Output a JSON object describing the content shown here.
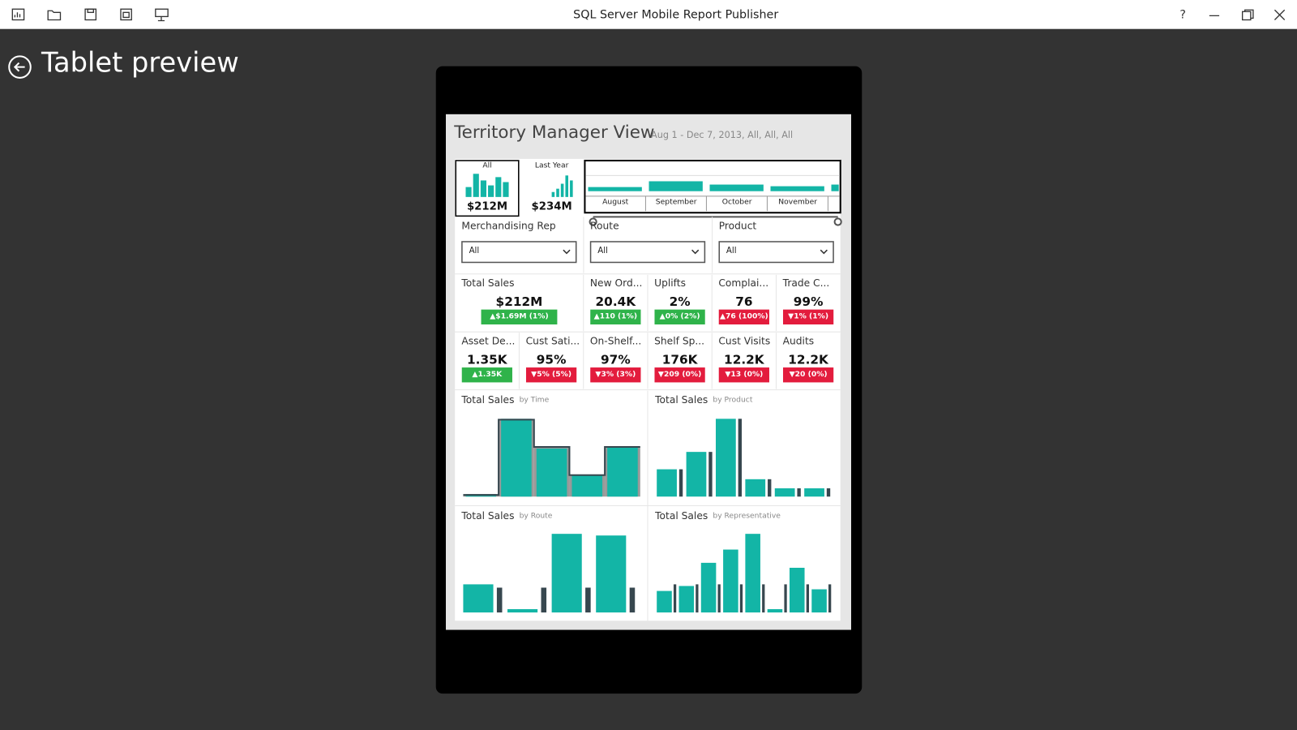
{
  "window": {
    "title": "SQL Server Mobile Report Publisher",
    "help": "?"
  },
  "page": {
    "title": "Tablet preview"
  },
  "report": {
    "title": "Territory Manager View",
    "subtitle": "Aug 1 - Dec 7, 2013, All, All, All"
  },
  "selectors": [
    {
      "label": "All",
      "value": "$212M",
      "bars": [
        12,
        28,
        20,
        14,
        24,
        18
      ]
    },
    {
      "label": "Last Year",
      "value": "$234M",
      "bars": [
        6,
        10,
        16,
        26,
        20
      ]
    }
  ],
  "time_navigator": {
    "months": [
      "August",
      "September",
      "October",
      "November"
    ],
    "bars": [
      5,
      12,
      8,
      6,
      8
    ]
  },
  "filters": [
    {
      "label": "Merchandising Rep",
      "selected": "All"
    },
    {
      "label": "Route",
      "selected": "All"
    },
    {
      "label": "Product",
      "selected": "All"
    }
  ],
  "kpi_rows": [
    [
      {
        "name": "Total Sales",
        "value": "$212M",
        "delta": "▲$1.69M (1%)",
        "trend": "up"
      },
      {
        "name": "New Ord...",
        "value": "20.4K",
        "delta": "▲110 (1%)",
        "trend": "up"
      },
      {
        "name": "Uplifts",
        "value": "2%",
        "delta": "▲0% (2%)",
        "trend": "up"
      },
      {
        "name": "Complai...",
        "value": "76",
        "delta": "▲76 (100%)",
        "trend": "down"
      },
      {
        "name": "Trade C...",
        "value": "99%",
        "delta": "▼1% (1%)",
        "trend": "down"
      }
    ],
    [
      {
        "name": "Asset De...",
        "value": "1.35K",
        "delta": "▲1.35K",
        "trend": "up"
      },
      {
        "name": "Cust Sati...",
        "value": "95%",
        "delta": "▼5% (5%)",
        "trend": "down"
      },
      {
        "name": "On-Shelf...",
        "value": "97%",
        "delta": "▼3% (3%)",
        "trend": "down"
      },
      {
        "name": "Shelf Sp...",
        "value": "176K",
        "delta": "▼209 (0%)",
        "trend": "down"
      },
      {
        "name": "Cust Visits",
        "value": "12.2K",
        "delta": "▼13 (0%)",
        "trend": "down"
      },
      {
        "name": "Audits",
        "value": "12.2K",
        "delta": "▼20 (0%)",
        "trend": "down"
      }
    ]
  ],
  "charts": [
    {
      "title": "Total Sales",
      "subtitle": "by Time",
      "style": "step",
      "values": [
        3,
        94,
        58,
        26,
        60
      ],
      "comparison": [
        2,
        93,
        60,
        26,
        60
      ]
    },
    {
      "title": "Total Sales",
      "subtitle": "by Product",
      "style": "paired",
      "values": [
        33,
        54,
        94,
        21,
        10,
        10
      ],
      "comparison": [
        33,
        54,
        94,
        21,
        10,
        10
      ]
    },
    {
      "title": "Total Sales",
      "subtitle": "by Route",
      "style": "paired",
      "values": [
        34,
        4,
        95,
        93
      ],
      "comparison": [
        30,
        30,
        30,
        30
      ]
    },
    {
      "title": "Total Sales",
      "subtitle": "by Representative",
      "style": "paired",
      "values": [
        26,
        32,
        60,
        76,
        95,
        4,
        54,
        28
      ],
      "comparison": [
        34,
        34,
        34,
        34,
        34,
        34,
        34,
        34
      ]
    }
  ]
}
